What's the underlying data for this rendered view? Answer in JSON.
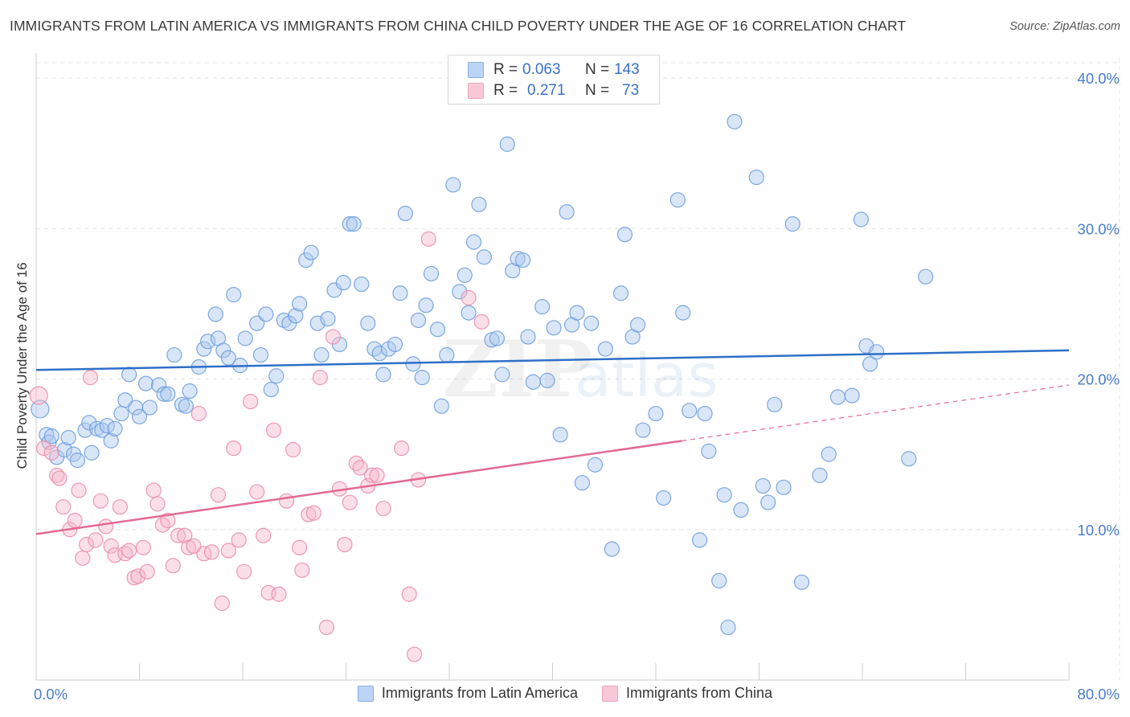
{
  "header": {
    "title": "IMMIGRANTS FROM LATIN AMERICA VS IMMIGRANTS FROM CHINA CHILD POVERTY UNDER THE AGE OF 16 CORRELATION CHART",
    "source": "Source: ZipAtlas.com"
  },
  "stats": {
    "r_label": "R =",
    "n_label": "N =",
    "blue": {
      "r": "0.063",
      "n": "143"
    },
    "pink": {
      "r": "0.271",
      "n": "73"
    }
  },
  "legend": {
    "blue_label": "Immigrants from Latin America",
    "pink_label": "Immigrants from China"
  },
  "watermark": {
    "zip": "ZIP",
    "atlas": "atlas"
  },
  "colors": {
    "blue_fill": "#aac8f0",
    "blue_stroke": "#6f9fdc",
    "blue_line": "#2f6fc8",
    "pink_fill": "#f6b8cc",
    "pink_stroke": "#e88eac",
    "pink_line": "#e26a94",
    "axis_text": "#4a7cc9",
    "grid": "#e3e3e3"
  },
  "chart_data": {
    "type": "scatter",
    "title": "IMMIGRANTS FROM LATIN AMERICA VS IMMIGRANTS FROM CHINA CHILD POVERTY UNDER THE AGE OF 16 CORRELATION CHART",
    "xlabel": "",
    "ylabel": "Child Poverty Under the Age of 16",
    "xlim": [
      0,
      80
    ],
    "ylim": [
      0,
      42
    ],
    "x_tick_labels": [
      "0.0%",
      "80.0%"
    ],
    "y_ticks": [
      10,
      20,
      30,
      40
    ],
    "y_tick_labels": [
      "10.0%",
      "20.0%",
      "30.0%",
      "40.0%"
    ],
    "grid": true,
    "series": [
      {
        "name": "Immigrants from Latin America",
        "color": "blue",
        "trend": {
          "x": [
            0,
            80
          ],
          "y": [
            20.6,
            21.9
          ],
          "dashed_from": null
        },
        "points": [
          [
            0.3,
            18.0
          ],
          [
            0.8,
            16.3
          ],
          [
            1.0,
            15.8
          ],
          [
            1.2,
            16.2
          ],
          [
            1.6,
            14.8
          ],
          [
            2.2,
            15.3
          ],
          [
            2.5,
            16.1
          ],
          [
            2.9,
            15.0
          ],
          [
            3.2,
            14.6
          ],
          [
            3.8,
            16.6
          ],
          [
            4.1,
            17.1
          ],
          [
            4.3,
            15.1
          ],
          [
            4.7,
            16.7
          ],
          [
            5.1,
            16.6
          ],
          [
            5.5,
            16.9
          ],
          [
            5.8,
            15.9
          ],
          [
            6.1,
            16.7
          ],
          [
            6.6,
            17.7
          ],
          [
            6.9,
            18.6
          ],
          [
            7.2,
            20.3
          ],
          [
            7.7,
            18.1
          ],
          [
            8.0,
            17.5
          ],
          [
            8.5,
            19.7
          ],
          [
            8.8,
            18.1
          ],
          [
            9.5,
            19.6
          ],
          [
            9.9,
            19.0
          ],
          [
            10.2,
            19.0
          ],
          [
            10.7,
            21.6
          ],
          [
            11.3,
            18.3
          ],
          [
            11.6,
            18.2
          ],
          [
            11.9,
            19.2
          ],
          [
            12.6,
            20.8
          ],
          [
            13.0,
            22.0
          ],
          [
            13.3,
            22.5
          ],
          [
            13.9,
            24.3
          ],
          [
            14.1,
            22.7
          ],
          [
            14.5,
            21.9
          ],
          [
            14.9,
            21.4
          ],
          [
            15.3,
            25.6
          ],
          [
            15.8,
            20.9
          ],
          [
            16.2,
            22.7
          ],
          [
            17.1,
            23.7
          ],
          [
            17.4,
            21.6
          ],
          [
            17.8,
            24.3
          ],
          [
            18.2,
            19.3
          ],
          [
            18.6,
            20.2
          ],
          [
            19.2,
            23.9
          ],
          [
            19.6,
            23.7
          ],
          [
            20.1,
            24.2
          ],
          [
            20.4,
            25.0
          ],
          [
            20.9,
            27.9
          ],
          [
            21.3,
            28.4
          ],
          [
            21.8,
            23.7
          ],
          [
            22.1,
            21.6
          ],
          [
            22.6,
            24.0
          ],
          [
            23.1,
            25.9
          ],
          [
            23.5,
            22.3
          ],
          [
            23.8,
            26.4
          ],
          [
            24.3,
            30.3
          ],
          [
            24.6,
            30.3
          ],
          [
            25.2,
            26.3
          ],
          [
            25.7,
            23.7
          ],
          [
            26.2,
            22.0
          ],
          [
            26.6,
            21.7
          ],
          [
            26.9,
            20.3
          ],
          [
            27.3,
            22.0
          ],
          [
            27.8,
            22.3
          ],
          [
            28.2,
            25.7
          ],
          [
            28.6,
            31.0
          ],
          [
            29.2,
            21.0
          ],
          [
            29.6,
            23.9
          ],
          [
            29.9,
            20.1
          ],
          [
            30.2,
            24.9
          ],
          [
            30.6,
            27.0
          ],
          [
            31.1,
            23.3
          ],
          [
            31.4,
            18.2
          ],
          [
            31.8,
            21.6
          ],
          [
            32.3,
            32.9
          ],
          [
            32.8,
            25.8
          ],
          [
            33.2,
            26.9
          ],
          [
            33.5,
            24.4
          ],
          [
            33.9,
            29.1
          ],
          [
            34.3,
            31.6
          ],
          [
            34.7,
            28.1
          ],
          [
            35.3,
            22.6
          ],
          [
            35.7,
            22.7
          ],
          [
            36.1,
            20.3
          ],
          [
            36.5,
            35.6
          ],
          [
            36.9,
            27.2
          ],
          [
            37.3,
            28.0
          ],
          [
            37.7,
            27.9
          ],
          [
            38.1,
            22.8
          ],
          [
            38.5,
            19.8
          ],
          [
            39.2,
            24.8
          ],
          [
            39.6,
            19.9
          ],
          [
            40.1,
            23.4
          ],
          [
            40.6,
            16.3
          ],
          [
            41.1,
            31.1
          ],
          [
            41.5,
            23.6
          ],
          [
            41.9,
            24.4
          ],
          [
            42.3,
            13.1
          ],
          [
            43.0,
            23.7
          ],
          [
            43.3,
            14.3
          ],
          [
            44.1,
            22.0
          ],
          [
            44.6,
            8.7
          ],
          [
            45.3,
            25.7
          ],
          [
            45.6,
            29.6
          ],
          [
            46.2,
            22.8
          ],
          [
            46.6,
            23.6
          ],
          [
            47.0,
            16.6
          ],
          [
            47.7,
            38.9
          ],
          [
            48.0,
            17.7
          ],
          [
            48.6,
            12.1
          ],
          [
            49.7,
            31.9
          ],
          [
            50.1,
            24.4
          ],
          [
            50.6,
            17.9
          ],
          [
            51.4,
            9.3
          ],
          [
            51.8,
            17.7
          ],
          [
            52.1,
            15.2
          ],
          [
            52.9,
            6.6
          ],
          [
            53.3,
            12.3
          ],
          [
            53.6,
            3.5
          ],
          [
            54.1,
            37.1
          ],
          [
            54.6,
            11.3
          ],
          [
            55.8,
            33.4
          ],
          [
            56.3,
            12.9
          ],
          [
            56.7,
            11.8
          ],
          [
            57.2,
            18.3
          ],
          [
            57.9,
            12.8
          ],
          [
            58.6,
            30.3
          ],
          [
            59.3,
            6.5
          ],
          [
            60.7,
            13.6
          ],
          [
            61.4,
            15.0
          ],
          [
            62.1,
            18.8
          ],
          [
            63.2,
            18.9
          ],
          [
            63.9,
            30.6
          ],
          [
            64.3,
            22.2
          ],
          [
            64.6,
            21.0
          ],
          [
            65.1,
            21.8
          ],
          [
            67.6,
            14.7
          ],
          [
            68.9,
            26.8
          ]
        ]
      },
      {
        "name": "Immigrants from China",
        "color": "pink",
        "trend": {
          "x": [
            0,
            80
          ],
          "y": [
            9.7,
            19.6
          ],
          "dashed_from": 50
        },
        "points": [
          [
            0.2,
            18.9
          ],
          [
            0.6,
            15.4
          ],
          [
            1.2,
            15.1
          ],
          [
            1.6,
            13.6
          ],
          [
            1.8,
            13.4
          ],
          [
            2.1,
            11.5
          ],
          [
            2.6,
            10.0
          ],
          [
            3.0,
            10.6
          ],
          [
            3.3,
            12.6
          ],
          [
            3.6,
            8.1
          ],
          [
            3.9,
            9.0
          ],
          [
            4.2,
            20.1
          ],
          [
            4.6,
            9.3
          ],
          [
            5.0,
            11.9
          ],
          [
            5.4,
            10.2
          ],
          [
            5.8,
            8.9
          ],
          [
            6.1,
            8.3
          ],
          [
            6.5,
            11.5
          ],
          [
            6.9,
            8.4
          ],
          [
            7.2,
            8.6
          ],
          [
            7.6,
            6.8
          ],
          [
            7.9,
            6.9
          ],
          [
            8.3,
            8.8
          ],
          [
            8.6,
            7.2
          ],
          [
            9.1,
            12.6
          ],
          [
            9.4,
            11.7
          ],
          [
            9.8,
            10.3
          ],
          [
            10.2,
            10.6
          ],
          [
            10.6,
            7.6
          ],
          [
            11.0,
            9.6
          ],
          [
            11.5,
            9.6
          ],
          [
            11.8,
            8.8
          ],
          [
            12.2,
            8.9
          ],
          [
            12.6,
            17.7
          ],
          [
            13.0,
            8.4
          ],
          [
            13.6,
            8.5
          ],
          [
            14.1,
            12.3
          ],
          [
            14.4,
            5.1
          ],
          [
            14.9,
            8.6
          ],
          [
            15.3,
            15.4
          ],
          [
            15.7,
            9.3
          ],
          [
            16.1,
            7.2
          ],
          [
            16.6,
            18.5
          ],
          [
            17.1,
            12.5
          ],
          [
            17.6,
            9.6
          ],
          [
            18.0,
            5.8
          ],
          [
            18.4,
            16.6
          ],
          [
            18.8,
            5.7
          ],
          [
            19.4,
            11.9
          ],
          [
            19.9,
            15.3
          ],
          [
            20.4,
            8.8
          ],
          [
            20.6,
            7.3
          ],
          [
            21.1,
            11.0
          ],
          [
            21.5,
            11.1
          ],
          [
            22.0,
            20.1
          ],
          [
            22.5,
            3.5
          ],
          [
            23.0,
            22.8
          ],
          [
            23.5,
            12.7
          ],
          [
            23.9,
            9.0
          ],
          [
            24.3,
            11.8
          ],
          [
            24.8,
            14.4
          ],
          [
            25.1,
            14.1
          ],
          [
            25.7,
            12.9
          ],
          [
            26.0,
            13.6
          ],
          [
            26.4,
            13.6
          ],
          [
            26.9,
            11.4
          ],
          [
            28.3,
            15.4
          ],
          [
            28.9,
            5.7
          ],
          [
            29.3,
            1.7
          ],
          [
            29.6,
            13.3
          ],
          [
            30.4,
            29.3
          ],
          [
            33.5,
            25.4
          ],
          [
            34.5,
            23.8
          ]
        ]
      }
    ]
  }
}
